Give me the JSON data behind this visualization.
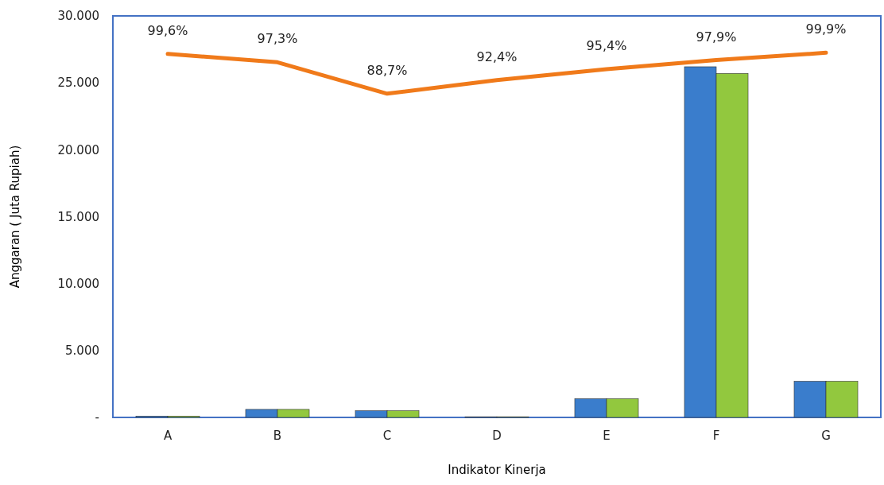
{
  "chart_data": {
    "type": "bar",
    "xlabel": "Indikator Kinerja",
    "ylabel": "Anggaran ( Juta Rupiah)",
    "categories": [
      "A",
      "B",
      "C",
      "D",
      "E",
      "F",
      "G"
    ],
    "series": [
      {
        "color": "#3a7dcc",
        "values": [
          100,
          600,
          500,
          50,
          1400,
          26200,
          2700
        ]
      },
      {
        "color": "#92c83e",
        "values": [
          100,
          600,
          500,
          50,
          1400,
          25700,
          2700
        ]
      },
      {
        "type": "line",
        "axis": "y2",
        "color": "#f07a1a",
        "values": [
          99.6,
          97.3,
          88.7,
          92.4,
          95.4,
          97.9,
          99.9
        ],
        "value_labels": [
          "99,6%",
          "97,3%",
          "88,7%",
          "92,4%",
          "95,4%",
          "97,9%",
          "99,9%"
        ]
      }
    ],
    "ylim": [
      0,
      30000
    ],
    "yticks": [
      {
        "value": 0,
        "label": "-"
      },
      {
        "value": 5000,
        "label": "5.000"
      },
      {
        "value": 10000,
        "label": "10.000"
      },
      {
        "value": 15000,
        "label": "15.000"
      },
      {
        "value": 20000,
        "label": "20.000"
      },
      {
        "value": 25000,
        "label": "25.000"
      },
      {
        "value": 30000,
        "label": "30.000"
      }
    ],
    "y2lim": [
      0,
      110
    ],
    "tick_labels": "xy",
    "grid": false
  }
}
